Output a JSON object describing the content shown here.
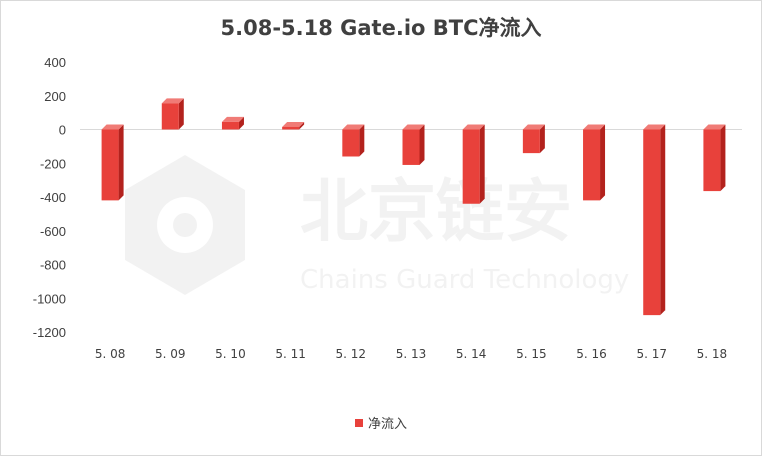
{
  "chart_data": {
    "type": "bar",
    "title": "5.08-5.18 Gate.io BTC净流入",
    "categories": [
      "5. 08",
      "5. 09",
      "5. 10",
      "5. 11",
      "5. 12",
      "5. 13",
      "5. 14",
      "5. 15",
      "5. 16",
      "5. 17",
      "5. 18"
    ],
    "series": [
      {
        "name": "净流入",
        "values": [
          -420,
          155,
          45,
          15,
          -160,
          -210,
          -440,
          -140,
          -420,
          -1100,
          -365
        ]
      }
    ],
    "yticks": [
      400,
      200,
      0,
      -200,
      -400,
      -600,
      -800,
      -1000,
      -1200
    ],
    "ylim": [
      -1200,
      400
    ],
    "legend": "bottom",
    "grid": false
  },
  "colors": {
    "bar_front": "#e8413b",
    "bar_side": "#b3221d",
    "bar_top": "#f07b76",
    "axis": "#d9d9d9"
  },
  "watermark": {
    "cn": "北京链安",
    "en": "Chains Guard Technology"
  }
}
